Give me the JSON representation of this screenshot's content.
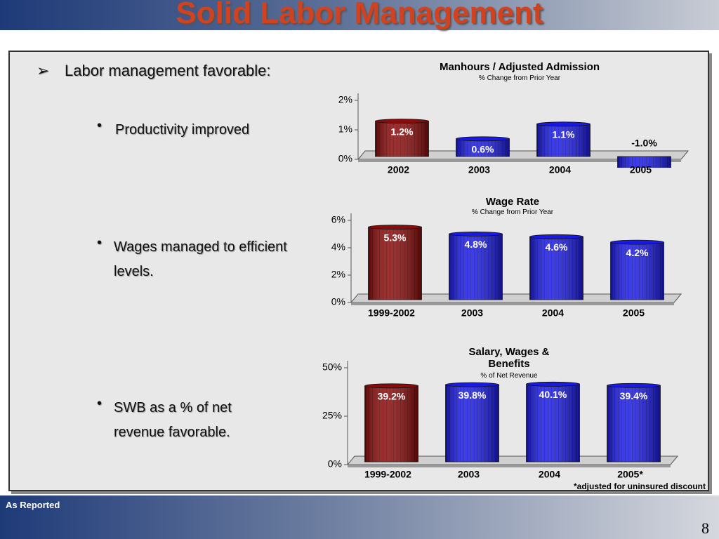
{
  "title": "Solid Labor Management",
  "bullets": {
    "main": "Labor management favorable:",
    "items": [
      "Productivity improved",
      "Wages managed to efficient levels.",
      "SWB as a % of net revenue favorable."
    ]
  },
  "footer": "As Reported",
  "page_number": "8",
  "chart_data": [
    {
      "type": "bar",
      "title": "Manhours / Adjusted Admission",
      "subtitle": "% Change from Prior Year",
      "categories": [
        "2002",
        "2003",
        "2004",
        "2005"
      ],
      "values": [
        1.2,
        0.6,
        1.1,
        -1.0
      ],
      "value_labels": [
        "1.2%",
        "0.6%",
        "1.1%",
        "-1.0%"
      ],
      "colors": [
        "#8b0a0a",
        "#1a1ae8",
        "#1a1ae8",
        "#1a1ae8"
      ],
      "ylim": [
        0,
        2
      ],
      "yticks": [
        {
          "value": 0,
          "label": "0%"
        },
        {
          "value": 1,
          "label": "1%"
        },
        {
          "value": 2,
          "label": "2%"
        }
      ]
    },
    {
      "type": "bar",
      "title": "Wage Rate",
      "subtitle": "% Change from Prior Year",
      "categories": [
        "1999-2002",
        "2003",
        "2004",
        "2005"
      ],
      "values": [
        5.3,
        4.8,
        4.6,
        4.2
      ],
      "value_labels": [
        "5.3%",
        "4.8%",
        "4.6%",
        "4.2%"
      ],
      "colors": [
        "#8b0a0a",
        "#1a1ae8",
        "#1a1ae8",
        "#1a1ae8"
      ],
      "ylim": [
        0,
        6
      ],
      "yticks": [
        {
          "value": 0,
          "label": "0%"
        },
        {
          "value": 2,
          "label": "2%"
        },
        {
          "value": 4,
          "label": "4%"
        },
        {
          "value": 6,
          "label": "6%"
        }
      ]
    },
    {
      "type": "bar",
      "title": "Salary, Wages & Benefits",
      "subtitle": "% of Net Revenue",
      "categories": [
        "1999-2002",
        "2003",
        "2004",
        "2005*"
      ],
      "values": [
        39.2,
        39.8,
        40.1,
        39.4
      ],
      "value_labels": [
        "39.2%",
        "39.8%",
        "40.1%",
        "39.4%"
      ],
      "colors": [
        "#8b0a0a",
        "#1a1ae8",
        "#1a1ae8",
        "#1a1ae8"
      ],
      "ylim": [
        0,
        50
      ],
      "yticks": [
        {
          "value": 0,
          "label": "0%"
        },
        {
          "value": 25,
          "label": "25%"
        },
        {
          "value": 50,
          "label": "50%"
        }
      ],
      "footnote": "*adjusted for uninsured discount"
    }
  ]
}
